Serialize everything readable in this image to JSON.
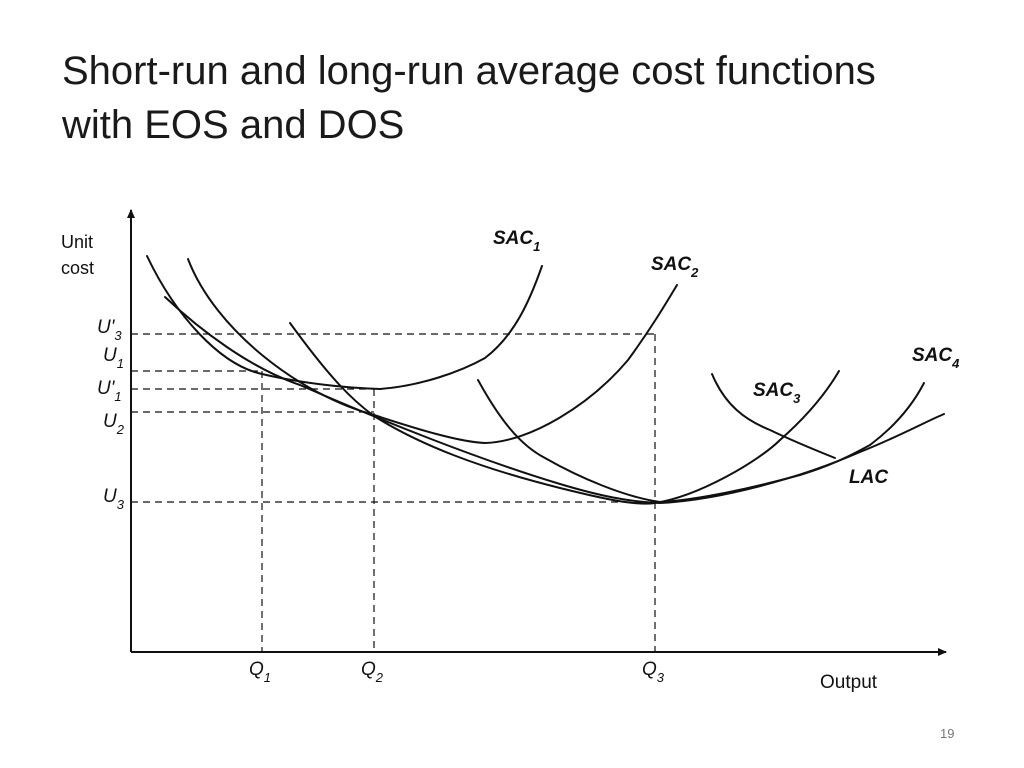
{
  "slide": {
    "title_line1": "Short-run and long-run average cost functions",
    "title_line2": "with EOS and DOS",
    "page_number": "19"
  },
  "diagram": {
    "y_axis_label_line1": "Unit",
    "y_axis_label_line2": "cost",
    "x_axis_label": "Output",
    "y_levels": [
      {
        "base": "U'",
        "sub": "3"
      },
      {
        "base": "U",
        "sub": "1"
      },
      {
        "base": "U'",
        "sub": "1"
      },
      {
        "base": "U",
        "sub": "2"
      },
      {
        "base": "U",
        "sub": "3"
      }
    ],
    "x_levels": [
      {
        "base": "Q",
        "sub": "1"
      },
      {
        "base": "Q",
        "sub": "2"
      },
      {
        "base": "Q",
        "sub": "3"
      }
    ],
    "curves": [
      {
        "base": "SAC",
        "sub": "1"
      },
      {
        "base": "SAC",
        "sub": "2"
      },
      {
        "base": "SAC",
        "sub": "3"
      },
      {
        "base": "SAC",
        "sub": "4"
      },
      {
        "base": "LAC",
        "sub": ""
      }
    ]
  }
}
